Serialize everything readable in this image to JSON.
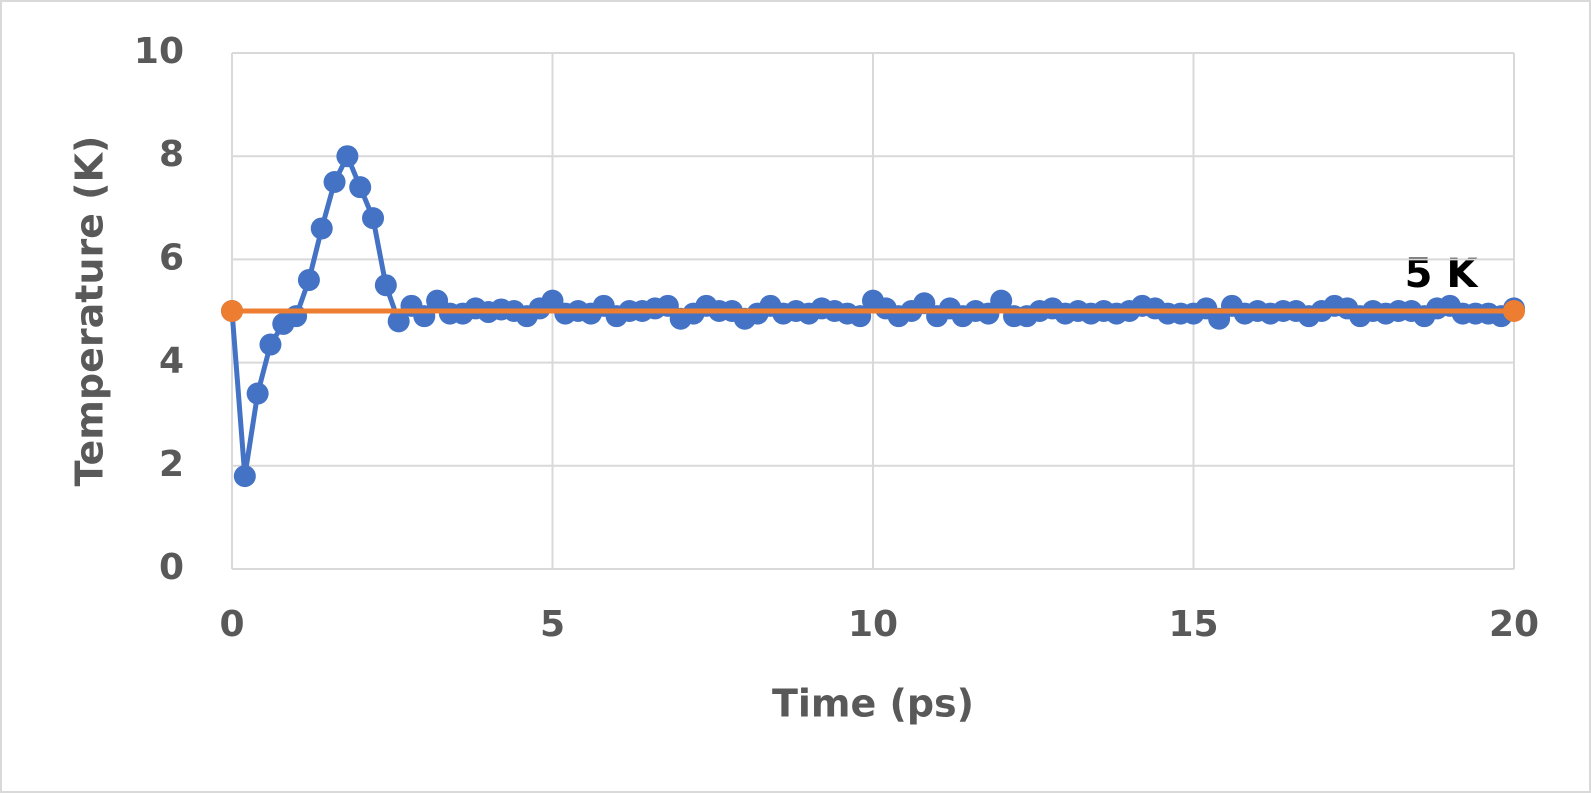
{
  "chart_data": {
    "type": "line",
    "x_label": "Time (ps)",
    "y_label": "Temperature (K)",
    "annotation": "5 K",
    "xlim": [
      0,
      20
    ],
    "xticks": [
      0,
      5,
      10,
      15,
      20
    ],
    "ylim": [
      0,
      10
    ],
    "yticks": [
      0,
      2,
      4,
      6,
      8,
      10
    ],
    "grid": true,
    "series": [
      {
        "color": "#4472c4",
        "x": [
          0,
          0.2,
          0.4,
          0.6,
          0.8,
          1.0,
          1.2,
          1.4,
          1.6,
          1.8,
          2.0,
          2.2,
          2.4,
          2.6,
          2.8,
          3.0,
          3.2,
          3.4,
          3.6,
          3.8,
          4.0,
          4.2,
          4.4,
          4.6,
          4.8,
          5.0,
          5.2,
          5.4,
          5.6,
          5.8,
          6.0,
          6.2,
          6.4,
          6.6,
          6.8,
          7.0,
          7.2,
          7.4,
          7.6,
          7.8,
          8.0,
          8.2,
          8.4,
          8.6,
          8.8,
          9.0,
          9.2,
          9.4,
          9.6,
          9.8,
          10.0,
          10.2,
          10.4,
          10.6,
          10.8,
          11.0,
          11.2,
          11.4,
          11.6,
          11.8,
          12.0,
          12.2,
          12.4,
          12.6,
          12.8,
          13.0,
          13.2,
          13.4,
          13.6,
          13.8,
          14.0,
          14.2,
          14.4,
          14.6,
          14.8,
          15.0,
          15.2,
          15.4,
          15.6,
          15.8,
          16.0,
          16.2,
          16.4,
          16.6,
          16.8,
          17.0,
          17.2,
          17.4,
          17.6,
          17.8,
          18.0,
          18.2,
          18.4,
          18.6,
          18.8,
          19.0,
          19.2,
          19.4,
          19.6,
          19.8,
          20.0
        ],
        "values": [
          5.0,
          1.8,
          3.4,
          4.35,
          4.75,
          4.9,
          5.6,
          6.6,
          7.5,
          8.0,
          7.4,
          6.8,
          5.5,
          4.8,
          5.1,
          4.9,
          5.2,
          4.95,
          4.95,
          5.05,
          4.98,
          5.03,
          5.0,
          4.9,
          5.05,
          5.2,
          4.95,
          5.0,
          4.95,
          5.1,
          4.9,
          5.0,
          5.0,
          5.05,
          5.1,
          4.85,
          4.95,
          5.1,
          5.0,
          5.0,
          4.85,
          4.95,
          5.1,
          4.95,
          5.0,
          4.95,
          5.05,
          5.0,
          4.95,
          4.9,
          5.2,
          5.05,
          4.9,
          5.0,
          5.15,
          4.9,
          5.05,
          4.9,
          5.0,
          4.95,
          5.2,
          4.9,
          4.9,
          5.0,
          5.05,
          4.95,
          5.0,
          4.95,
          5.0,
          4.95,
          5.0,
          5.1,
          5.05,
          4.95,
          4.95,
          4.95,
          5.05,
          4.85,
          5.1,
          4.95,
          5.0,
          4.95,
          5.0,
          5.0,
          4.9,
          5.0,
          5.1,
          5.05,
          4.9,
          5.0,
          4.95,
          5.0,
          5.0,
          4.9,
          5.05,
          5.1,
          4.95,
          4.95,
          4.95,
          4.9,
          5.05
        ]
      },
      {
        "color": "#ed7d31",
        "x": [
          0,
          20
        ],
        "values": [
          5,
          5
        ]
      }
    ]
  }
}
